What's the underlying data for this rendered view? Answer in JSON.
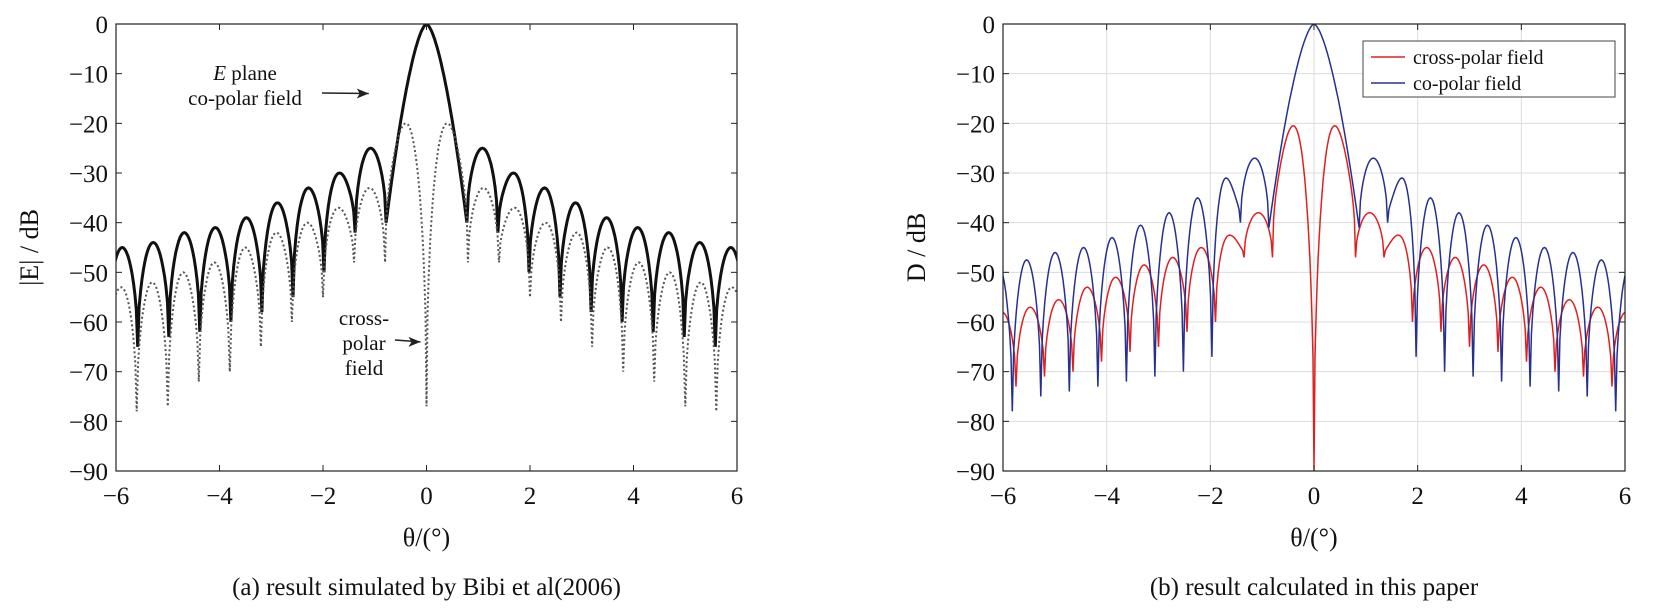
{
  "chart_data": [
    {
      "type": "line",
      "caption": "(a) result simulated by Bibi et al(2006)",
      "xlabel": "θ/(°)",
      "ylabel": "|E| / dB",
      "xlim": [
        -6,
        6
      ],
      "ylim": [
        -90,
        0
      ],
      "xticks": [
        -6,
        -4,
        -2,
        0,
        2,
        4,
        6
      ],
      "yticks": [
        0,
        -10,
        -20,
        -30,
        -40,
        -50,
        -60,
        -70,
        -80,
        -90
      ],
      "grid": false,
      "annotations": [
        {
          "lines": [
            "E plane",
            "co-polar field"
          ],
          "points_to": [
            -1.0,
            -14
          ]
        },
        {
          "lines": [
            "cross-",
            "polar",
            "field"
          ],
          "points_to": [
            0.0,
            -64
          ]
        }
      ],
      "series": [
        {
          "style": "solid-thick",
          "color": "#111111",
          "main_lobe_half_width": 0.78,
          "main_lobe_edge_level": -40,
          "sidelobe_width": 0.6,
          "sidelobe_peaks": [
            -25,
            -30,
            -33,
            -36,
            -39,
            -41,
            -42,
            -44,
            -45
          ],
          "sidelobe_nulls": [
            -42,
            -50,
            -55,
            -58,
            -60,
            -62,
            -63,
            -65,
            -66
          ]
        },
        {
          "style": "dotted",
          "color": "#555555",
          "inner_lobe_peak": -20,
          "inner_lobe_edge": 0.8,
          "center_null": -77,
          "sidelobe_width": 0.6,
          "sidelobe_peaks": [
            -33,
            -37,
            -40,
            -42,
            -45,
            -48,
            -50,
            -52,
            -53
          ],
          "sidelobe_nulls": [
            -48,
            -55,
            -60,
            -65,
            -70,
            -72,
            -77,
            -78,
            -68
          ]
        }
      ]
    },
    {
      "type": "line",
      "caption": "(b) result calculated in this paper",
      "xlabel": "θ/(°)",
      "ylabel": "D / dB",
      "xlim": [
        -6,
        6
      ],
      "ylim": [
        -90,
        0
      ],
      "xticks": [
        -6,
        -4,
        -2,
        0,
        2,
        4,
        6
      ],
      "yticks": [
        0,
        -10,
        -20,
        -30,
        -40,
        -50,
        -60,
        -70,
        -80,
        -90
      ],
      "grid": true,
      "legend": "top-right",
      "series": [
        {
          "name": "cross-polar field",
          "color": "#e02020",
          "inner_lobe_peak": -20.5,
          "inner_lobe_edge": 0.8,
          "center_null": -90,
          "sidelobe_width": 0.55,
          "sidelobe_peaks": [
            -38,
            -42.5,
            -45,
            -47,
            -48.5,
            -51,
            -53,
            -55.5,
            -57,
            -58
          ],
          "sidelobe_nulls": [
            -47,
            -60,
            -62,
            -65,
            -66,
            -68,
            -70,
            -71,
            -73,
            -69
          ]
        },
        {
          "name": "co-polar field",
          "color": "#27308f",
          "main_lobe_half_width": 0.87,
          "main_lobe_edge_level": -41,
          "sidelobe_width": 0.55,
          "sidelobe_peaks": [
            -27,
            -31,
            -35,
            -38,
            -40.5,
            -43,
            -45,
            -46,
            -47.5,
            -48.5
          ],
          "sidelobe_nulls": [
            -40,
            -67,
            -70,
            -71,
            -72,
            -73,
            -74,
            -75,
            -78,
            -79
          ]
        }
      ]
    }
  ]
}
